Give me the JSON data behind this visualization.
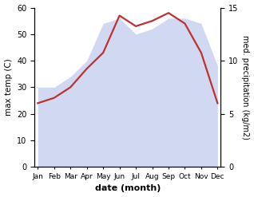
{
  "months": [
    "Jan",
    "Feb",
    "Mar",
    "Apr",
    "May",
    "Jun",
    "Jul",
    "Aug",
    "Sep",
    "Oct",
    "Nov",
    "Dec"
  ],
  "month_positions": [
    0,
    1,
    2,
    3,
    4,
    5,
    6,
    7,
    8,
    9,
    10,
    11
  ],
  "temp": [
    24,
    26,
    30,
    37,
    43,
    57,
    53,
    55,
    58,
    54,
    43,
    24
  ],
  "precip": [
    7.5,
    7.5,
    8.5,
    10.0,
    13.5,
    14.0,
    12.5,
    13.0,
    14.0,
    14.0,
    13.5,
    9.5
  ],
  "temp_ylim": [
    0,
    60
  ],
  "precip_ylim": [
    0,
    15
  ],
  "precip_yticks": [
    0,
    5,
    10,
    15
  ],
  "temp_yticks": [
    0,
    10,
    20,
    30,
    40,
    50,
    60
  ],
  "fill_color": "#aab8e8",
  "fill_alpha": 0.55,
  "line_color": "#c03030",
  "line_width": 1.6,
  "bg_color": "#ffffff",
  "xlabel": "date (month)",
  "ylabel_left": "max temp (C)",
  "ylabel_right": "med. precipitation (kg/m2)",
  "spine_color": "#888888"
}
